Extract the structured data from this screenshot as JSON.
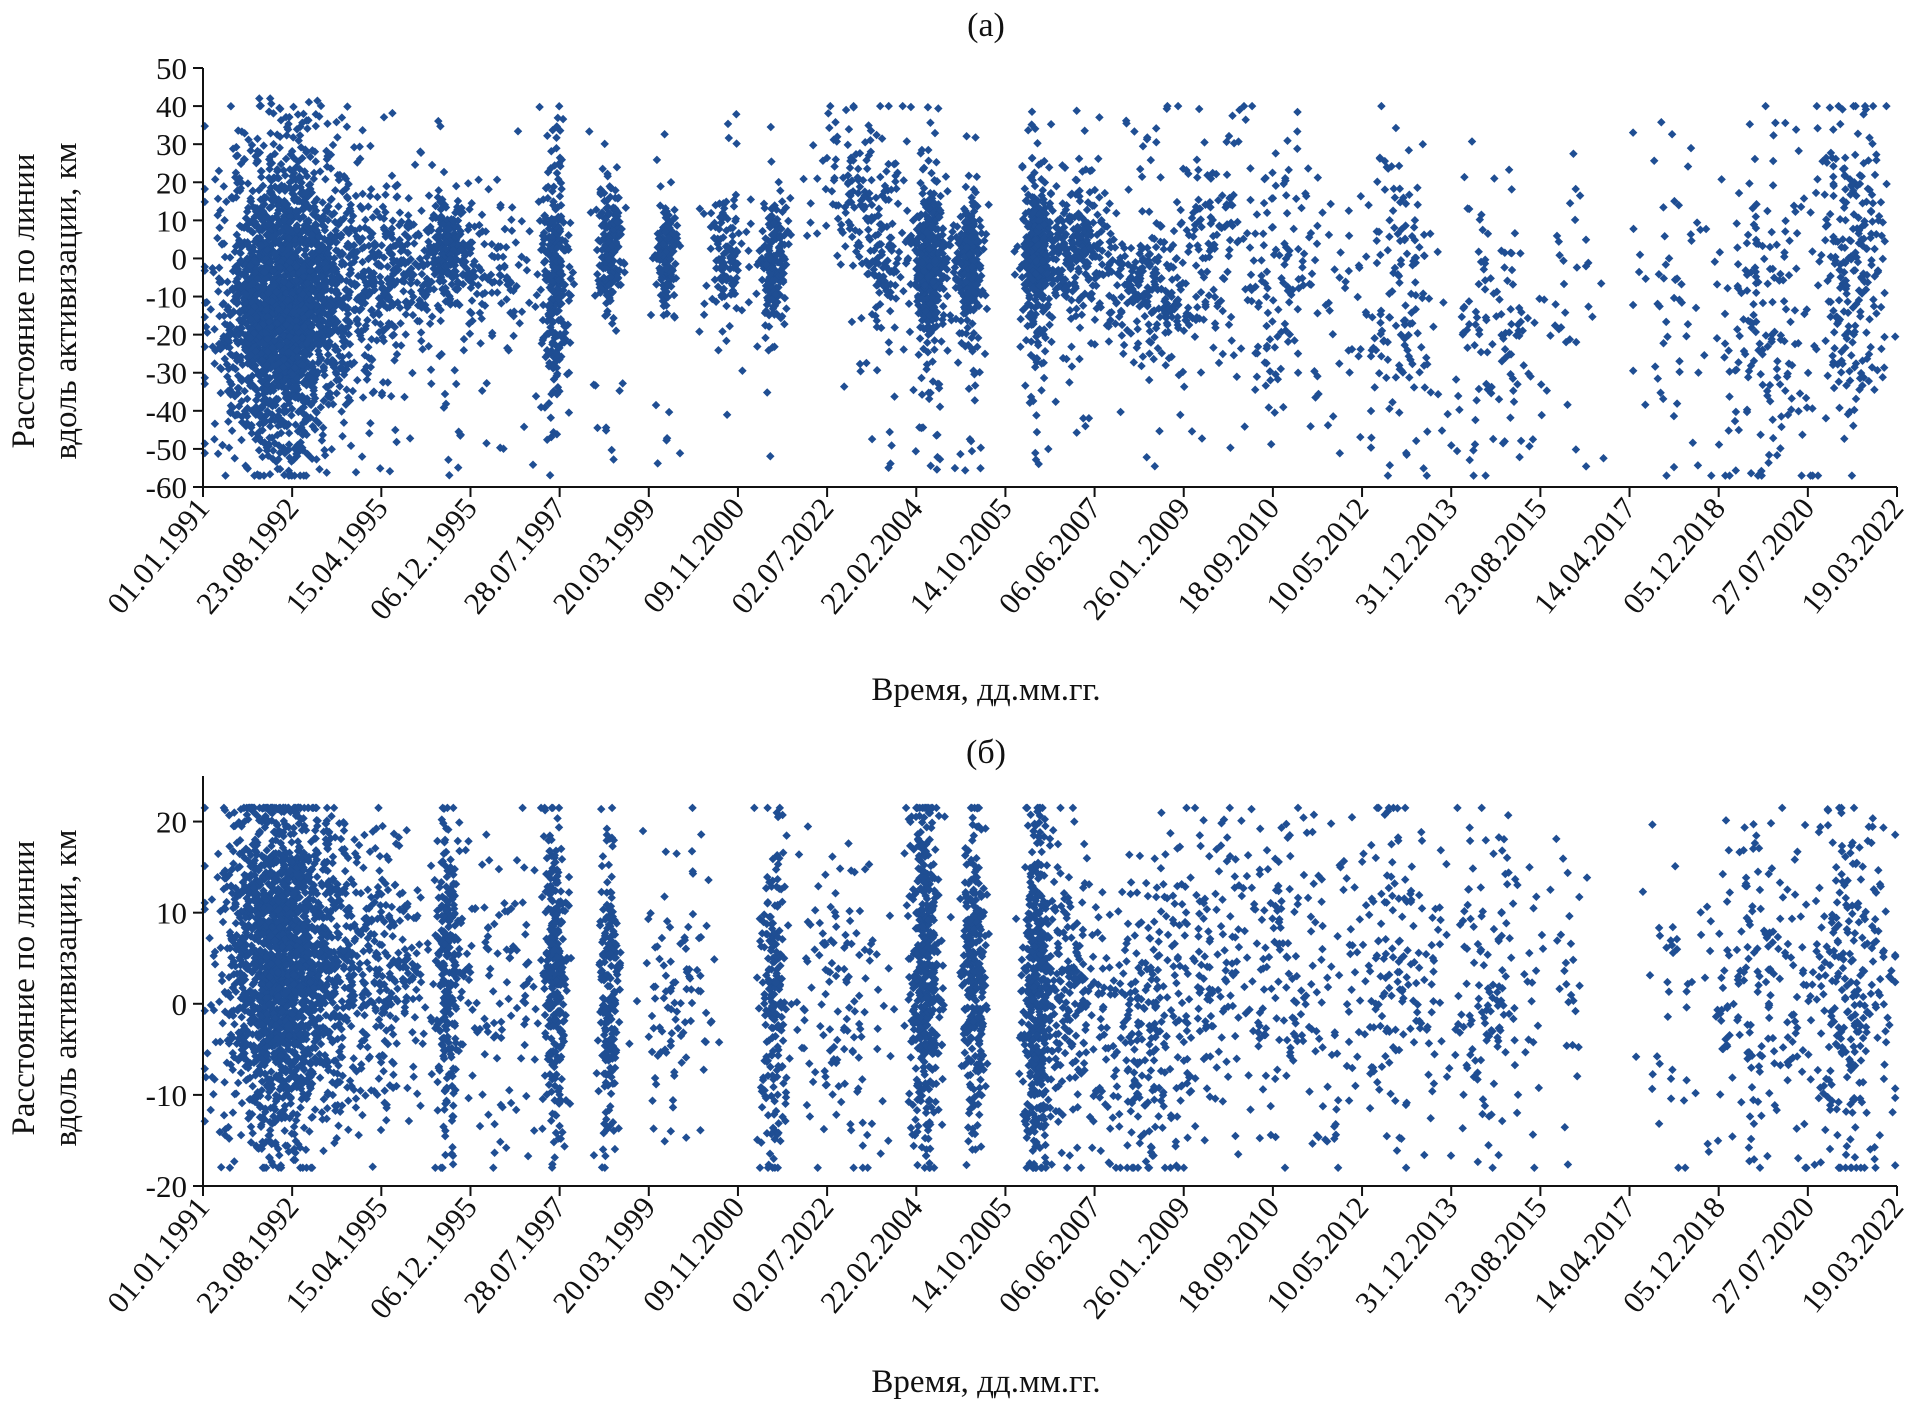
{
  "chart_data": [
    {
      "type": "scatter",
      "title": "(a)",
      "xlabel": "Время, дд.мм.гг.",
      "ylabel": [
        "Расстояние по линии",
        "вдоль активизации, км"
      ],
      "ylim": [
        -60,
        50
      ],
      "yticks": [
        50,
        40,
        30,
        20,
        10,
        0,
        -10,
        -20,
        -30,
        -40,
        -50,
        -60
      ],
      "xlim": [
        0,
        19
      ],
      "xticks": [
        "01.01.1991",
        "23.08.1992",
        "15.04.1995",
        "06.12..1995",
        "28.07.1997",
        "20.03.1999",
        "09.11.2000",
        "02.07.2022",
        "22.02.2004",
        "14.10.2005",
        "06.06.2007",
        "26.01..2009",
        "18.09.2010",
        "10.05.2012",
        "31.12.2013",
        "23.08.2015",
        "14.04.2017",
        "05.12.2018",
        "27.07.2020",
        "19.03.2022"
      ],
      "color": "#1f4e93",
      "clusters": [
        {
          "x": 0.85,
          "spread_x": 0.32,
          "y": -12,
          "spread_y": 18,
          "n": 2000,
          "range": [
            -57,
            42
          ]
        },
        {
          "x": 1.55,
          "spread_x": 0.4,
          "y": -8,
          "spread_y": 14,
          "n": 500,
          "range": [
            -57,
            40
          ]
        },
        {
          "x": 2.2,
          "spread_x": 0.22,
          "y": -3,
          "spread_y": 10,
          "n": 160,
          "range": [
            -57,
            40
          ]
        },
        {
          "x": 2.75,
          "spread_x": 0.12,
          "y": 2,
          "spread_y": 7,
          "n": 260,
          "range": [
            -57,
            40
          ]
        },
        {
          "x": 3.3,
          "spread_x": 0.25,
          "y": -3,
          "spread_y": 10,
          "n": 120,
          "range": [
            -57,
            40
          ]
        },
        {
          "x": 3.95,
          "spread_x": 0.07,
          "y": -3,
          "spread_y": 14,
          "n": 280,
          "range": [
            -57,
            40
          ]
        },
        {
          "x": 4.55,
          "spread_x": 0.07,
          "y": 3,
          "spread_y": 8,
          "n": 200,
          "range": [
            -57,
            40
          ]
        },
        {
          "x": 5.2,
          "spread_x": 0.06,
          "y": 1,
          "spread_y": 7,
          "n": 150,
          "range": [
            -57,
            40
          ]
        },
        {
          "x": 5.85,
          "spread_x": 0.12,
          "y": 1,
          "spread_y": 9,
          "n": 120,
          "range": [
            -57,
            40
          ]
        },
        {
          "x": 6.4,
          "spread_x": 0.08,
          "y": -2,
          "spread_y": 9,
          "n": 180,
          "range": [
            -57,
            40
          ]
        },
        {
          "x": 7.4,
          "spread_x": 0.25,
          "y": 18,
          "spread_y": 12,
          "n": 150,
          "range": [
            -57,
            40
          ]
        },
        {
          "x": 7.65,
          "spread_x": 0.12,
          "y": -3,
          "spread_y": 8,
          "n": 90,
          "range": [
            -57,
            40
          ]
        },
        {
          "x": 8.15,
          "spread_x": 0.09,
          "y": -3,
          "spread_y": 10,
          "n": 450,
          "range": [
            -57,
            40
          ]
        },
        {
          "x": 8.6,
          "spread_x": 0.08,
          "y": -1,
          "spread_y": 8,
          "n": 280,
          "range": [
            -57,
            40
          ]
        },
        {
          "x": 9.35,
          "spread_x": 0.08,
          "y": 1,
          "spread_y": 9,
          "n": 420,
          "range": [
            -57,
            40
          ]
        },
        {
          "x": 9.8,
          "spread_x": 0.18,
          "y": 3,
          "spread_y": 8,
          "n": 230,
          "range": [
            -57,
            40
          ]
        },
        {
          "x": 10.55,
          "spread_x": 0.3,
          "y": -8,
          "spread_y": 9,
          "n": 240,
          "range": [
            -57,
            40
          ]
        },
        {
          "x": 11.3,
          "spread_x": 0.35,
          "y": 5,
          "spread_y": 18,
          "n": 160,
          "range": [
            -57,
            40
          ]
        },
        {
          "x": 12.2,
          "spread_x": 0.35,
          "y": -5,
          "spread_y": 18,
          "n": 140,
          "range": [
            -57,
            40
          ]
        },
        {
          "x": 13.4,
          "spread_x": 0.25,
          "y": -12,
          "spread_y": 20,
          "n": 150,
          "range": [
            -57,
            40
          ]
        },
        {
          "x": 14.5,
          "spread_x": 0.3,
          "y": -20,
          "spread_y": 20,
          "n": 120,
          "range": [
            -57,
            40
          ]
        },
        {
          "x": 15.35,
          "spread_x": 0.2,
          "y": -10,
          "spread_y": 25,
          "n": 30,
          "range": [
            -57,
            40
          ]
        },
        {
          "x": 16.45,
          "spread_x": 0.25,
          "y": -18,
          "spread_y": 22,
          "n": 55,
          "range": [
            -57,
            40
          ]
        },
        {
          "x": 17.5,
          "spread_x": 0.3,
          "y": -15,
          "spread_y": 22,
          "n": 180,
          "range": [
            -57,
            40
          ]
        },
        {
          "x": 18.5,
          "spread_x": 0.2,
          "y": 2,
          "spread_y": 20,
          "n": 230,
          "range": [
            -57,
            40
          ]
        }
      ]
    },
    {
      "type": "scatter",
      "title": "(б)",
      "xlabel": "Время, дд.мм.гг.",
      "ylabel": [
        "Расстояние по линии",
        "вдоль активизации, км"
      ],
      "ylim": [
        -20,
        25
      ],
      "yticks": [
        20,
        10,
        0,
        -10,
        -20
      ],
      "xlim": [
        0,
        19
      ],
      "xticks": [
        "01.01.1991",
        "23.08.1992",
        "15.04.1995",
        "06.12..1995",
        "28.07.1997",
        "20.03.1999",
        "09.11.2000",
        "02.07.2022",
        "22.02.2004",
        "14.10.2005",
        "06.06.2007",
        "26.01..2009",
        "18.09.2010",
        "10.05.2012",
        "31.12.2013",
        "23.08.2015",
        "14.04.2017",
        "05.12.2018",
        "27.07.2020",
        "19.03.2022"
      ],
      "color": "#1f4e93",
      "clusters": [
        {
          "x": 0.85,
          "spread_x": 0.3,
          "y": 5,
          "spread_y": 9,
          "n": 1800,
          "range": [
            -18,
            21.5
          ]
        },
        {
          "x": 1.5,
          "spread_x": 0.4,
          "y": 4,
          "spread_y": 8,
          "n": 450,
          "range": [
            -18,
            21.5
          ]
        },
        {
          "x": 2.1,
          "spread_x": 0.25,
          "y": 2,
          "spread_y": 7,
          "n": 150,
          "range": [
            -18,
            21.5
          ]
        },
        {
          "x": 2.75,
          "spread_x": 0.07,
          "y": 4,
          "spread_y": 8,
          "n": 250,
          "range": [
            -18,
            21.5
          ]
        },
        {
          "x": 3.3,
          "spread_x": 0.3,
          "y": 2,
          "spread_y": 9,
          "n": 120,
          "range": [
            -18,
            21.5
          ]
        },
        {
          "x": 3.95,
          "spread_x": 0.07,
          "y": 2,
          "spread_y": 9,
          "n": 280,
          "range": [
            -18,
            21.5
          ]
        },
        {
          "x": 4.55,
          "spread_x": 0.06,
          "y": 1,
          "spread_y": 8,
          "n": 200,
          "range": [
            -18,
            21.5
          ]
        },
        {
          "x": 5.3,
          "spread_x": 0.2,
          "y": 1,
          "spread_y": 7,
          "n": 100,
          "range": [
            -18,
            21.5
          ]
        },
        {
          "x": 6.4,
          "spread_x": 0.07,
          "y": 1,
          "spread_y": 9,
          "n": 200,
          "range": [
            -18,
            21.5
          ]
        },
        {
          "x": 7.2,
          "spread_x": 0.3,
          "y": -2,
          "spread_y": 9,
          "n": 140,
          "range": [
            -18,
            21.5
          ]
        },
        {
          "x": 8.1,
          "spread_x": 0.08,
          "y": 4,
          "spread_y": 9,
          "n": 450,
          "range": [
            -18,
            21.5
          ]
        },
        {
          "x": 8.65,
          "spread_x": 0.07,
          "y": 3,
          "spread_y": 8,
          "n": 300,
          "range": [
            -18,
            21.5
          ]
        },
        {
          "x": 9.35,
          "spread_x": 0.07,
          "y": 1,
          "spread_y": 9,
          "n": 420,
          "range": [
            -18,
            21.5
          ]
        },
        {
          "x": 9.7,
          "spread_x": 0.2,
          "y": 1,
          "spread_y": 8,
          "n": 200,
          "range": [
            -18,
            21.5
          ]
        },
        {
          "x": 10.5,
          "spread_x": 0.35,
          "y": -4,
          "spread_y": 8,
          "n": 250,
          "range": [
            -18,
            21.5
          ]
        },
        {
          "x": 11.3,
          "spread_x": 0.4,
          "y": 5,
          "spread_y": 8,
          "n": 200,
          "range": [
            -18,
            21.5
          ]
        },
        {
          "x": 12.3,
          "spread_x": 0.35,
          "y": 2,
          "spread_y": 9,
          "n": 150,
          "range": [
            -18,
            21.5
          ]
        },
        {
          "x": 13.4,
          "spread_x": 0.3,
          "y": 3,
          "spread_y": 9,
          "n": 170,
          "range": [
            -18,
            21.5
          ]
        },
        {
          "x": 14.5,
          "spread_x": 0.3,
          "y": 1,
          "spread_y": 9,
          "n": 140,
          "range": [
            -18,
            21.5
          ]
        },
        {
          "x": 15.3,
          "spread_x": 0.15,
          "y": 0,
          "spread_y": 10,
          "n": 25,
          "range": [
            -18,
            21.5
          ]
        },
        {
          "x": 16.5,
          "spread_x": 0.25,
          "y": -4,
          "spread_y": 10,
          "n": 40,
          "range": [
            -18,
            21.5
          ]
        },
        {
          "x": 17.5,
          "spread_x": 0.3,
          "y": 2,
          "spread_y": 10,
          "n": 180,
          "range": [
            -18,
            21.5
          ]
        },
        {
          "x": 18.5,
          "spread_x": 0.25,
          "y": 0,
          "spread_y": 10,
          "n": 260,
          "range": [
            -18,
            21.5
          ]
        }
      ]
    }
  ]
}
